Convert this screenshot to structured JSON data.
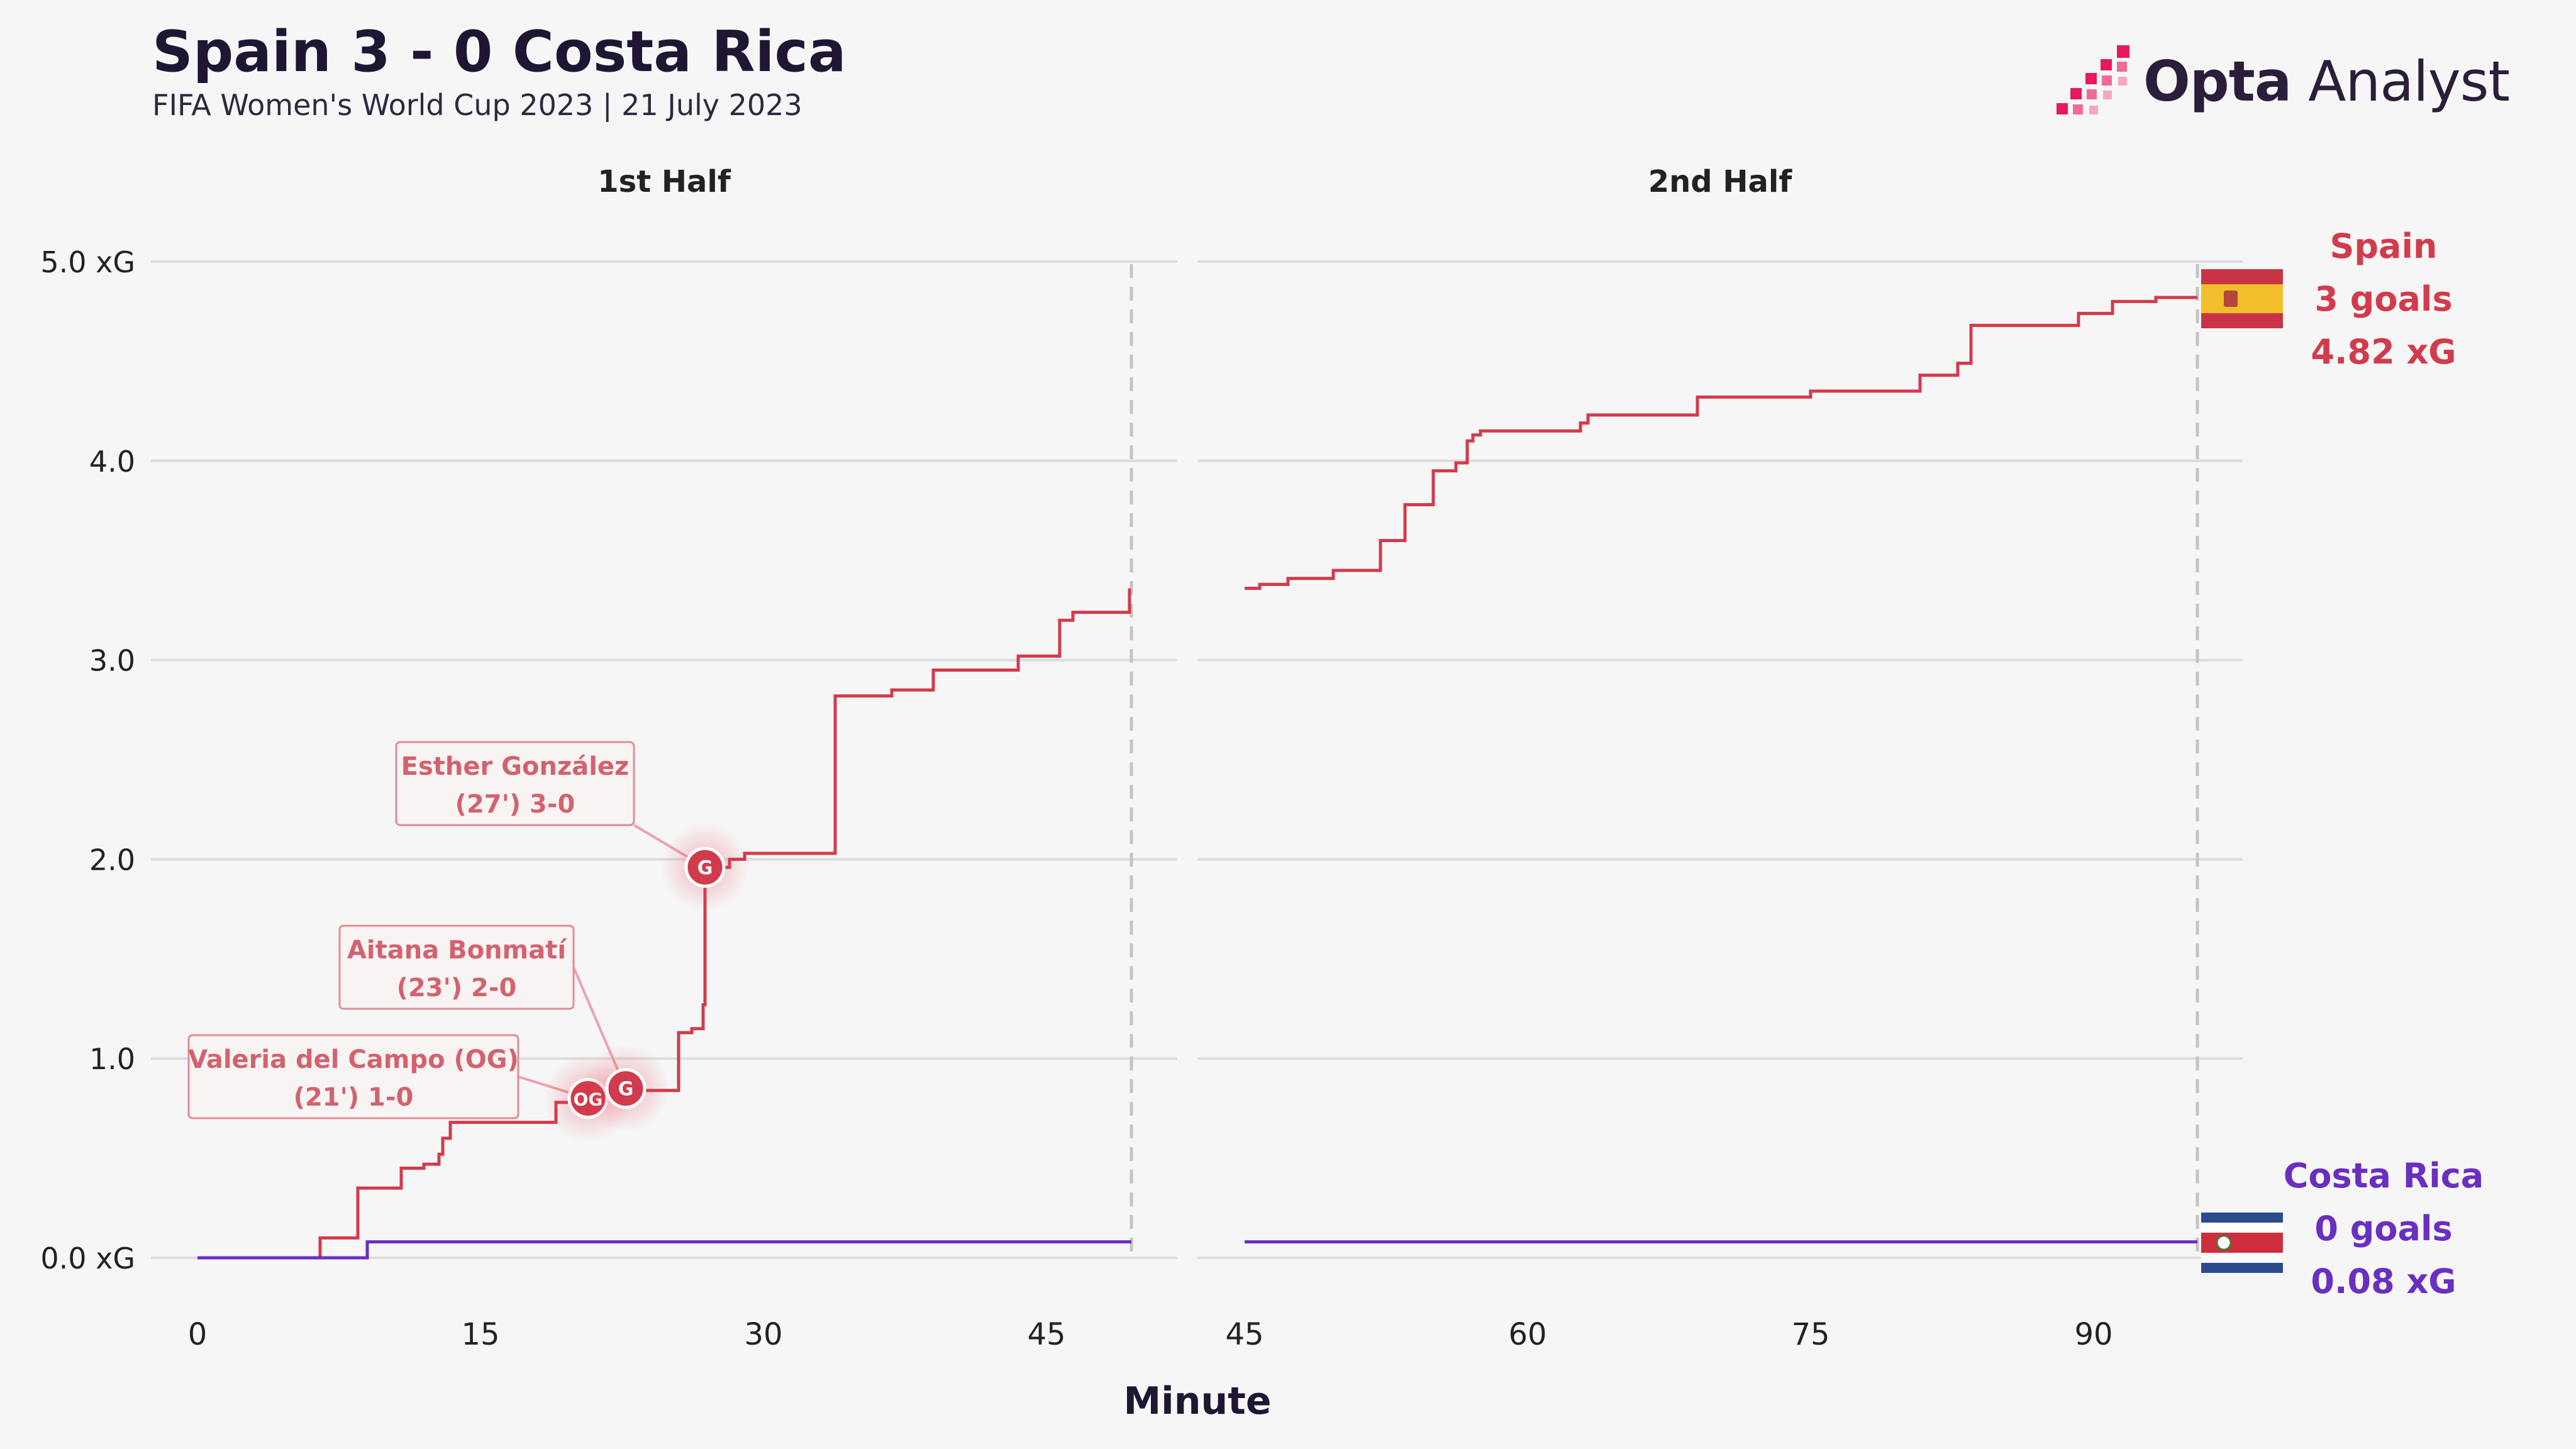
{
  "header": {
    "title": "Spain 3 - 0 Costa Rica",
    "subtitle": "FIFA Women's World Cup 2023 | 21 July 2023",
    "brand_bold": "Opta",
    "brand_light": "Analyst"
  },
  "colors": {
    "spain": "#d23b4b",
    "costa_rica": "#6a2fc0",
    "grid": "#dcdcdc",
    "text": "#222222",
    "background": "#f6f6f6"
  },
  "chart_data": {
    "type": "line",
    "step": true,
    "xlabel": "Minute",
    "ylim": [
      0,
      5
    ],
    "yticks": [
      {
        "value": 0,
        "label": "0.0 xG"
      },
      {
        "value": 1,
        "label": "1.0"
      },
      {
        "value": 2,
        "label": "2.0"
      },
      {
        "value": 3,
        "label": "3.0"
      },
      {
        "value": 4,
        "label": "4.0"
      },
      {
        "value": 5,
        "label": "5.0 xG"
      }
    ],
    "panels": [
      {
        "label": "1st Half",
        "xlim": [
          0,
          52
        ],
        "xticks": [
          0,
          15,
          30,
          45
        ],
        "end_minute": 49.5
      },
      {
        "label": "2nd Half",
        "xlim": [
          45,
          100
        ],
        "xticks": [
          45,
          60,
          75,
          90
        ],
        "end_minute": 95.5
      }
    ],
    "series": [
      {
        "name": "Spain",
        "team": "spain",
        "goals_text": "3 goals",
        "xg_text": "4.82 xG",
        "first_half": [
          [
            0,
            0
          ],
          [
            6.5,
            0.1
          ],
          [
            8.5,
            0.35
          ],
          [
            10.8,
            0.45
          ],
          [
            12,
            0.47
          ],
          [
            12.8,
            0.52
          ],
          [
            13,
            0.6
          ],
          [
            13.4,
            0.68
          ],
          [
            19,
            0.78
          ],
          [
            20.7,
            0.8
          ],
          [
            22.5,
            0.84
          ],
          [
            25.5,
            1.13
          ],
          [
            26.2,
            1.15
          ],
          [
            26.8,
            1.27
          ],
          [
            26.9,
            1.95
          ],
          [
            27.4,
            1.96
          ],
          [
            28.2,
            2.0
          ],
          [
            29,
            2.03
          ],
          [
            33.8,
            2.82
          ],
          [
            36.8,
            2.85
          ],
          [
            39,
            2.95
          ],
          [
            43.5,
            3.02
          ],
          [
            45.7,
            3.2
          ],
          [
            46.4,
            3.24
          ],
          [
            49.4,
            3.36
          ]
        ],
        "second_half": [
          [
            45,
            3.36
          ],
          [
            45.8,
            3.38
          ],
          [
            47.3,
            3.41
          ],
          [
            49.7,
            3.45
          ],
          [
            52.2,
            3.6
          ],
          [
            53.5,
            3.78
          ],
          [
            55,
            3.95
          ],
          [
            56.2,
            3.99
          ],
          [
            56.8,
            4.1
          ],
          [
            57.1,
            4.13
          ],
          [
            57.5,
            4.15
          ],
          [
            62.8,
            4.19
          ],
          [
            63.2,
            4.23
          ],
          [
            69,
            4.32
          ],
          [
            75,
            4.35
          ],
          [
            80.8,
            4.43
          ],
          [
            82.8,
            4.49
          ],
          [
            83.5,
            4.68
          ],
          [
            89.2,
            4.74
          ],
          [
            91,
            4.8
          ],
          [
            93.3,
            4.82
          ],
          [
            95.5,
            4.82
          ]
        ]
      },
      {
        "name": "Costa Rica",
        "team": "costa_rica",
        "goals_text": "0 goals",
        "xg_text": "0.08 xG",
        "first_half": [
          [
            0,
            0
          ],
          [
            9,
            0.08
          ],
          [
            49.5,
            0.08
          ]
        ],
        "second_half": [
          [
            45,
            0.08
          ],
          [
            95.5,
            0.08
          ]
        ]
      }
    ],
    "goals": [
      {
        "minute": 20.7,
        "xg": 0.8,
        "marker": "OG",
        "player": "Valeria del Campo (OG)",
        "detail": "(21') 1-0"
      },
      {
        "minute": 22.7,
        "xg": 0.85,
        "marker": "G",
        "player": "Aitana Bonmatí",
        "detail": "(23') 2-0"
      },
      {
        "minute": 26.9,
        "xg": 1.96,
        "marker": "G",
        "player": "Esther González",
        "detail": "(27') 3-0"
      }
    ]
  }
}
